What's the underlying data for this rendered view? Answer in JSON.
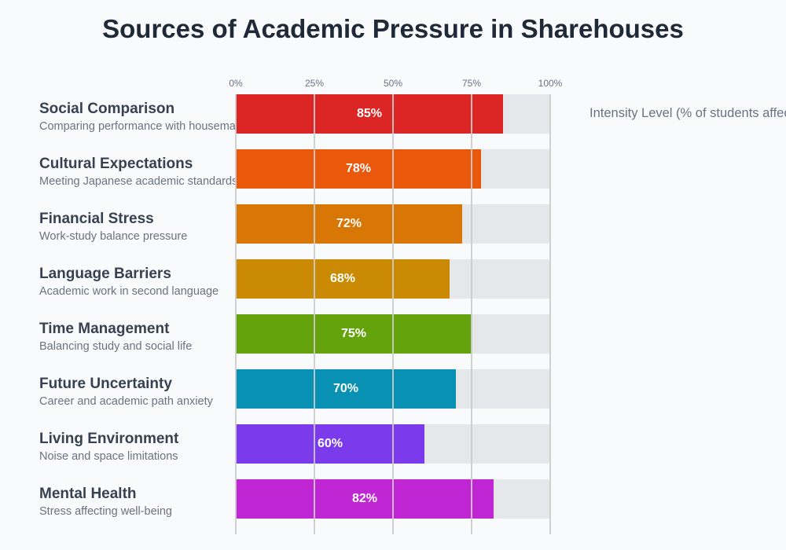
{
  "chart_data": {
    "type": "bar",
    "orientation": "horizontal",
    "title": "Sources of Academic Pressure in Sharehouses",
    "subtitle": "Intensity Level (% of students affected)",
    "xlim": [
      0,
      100
    ],
    "x_ticks": [
      "0%",
      "25%",
      "50%",
      "75%",
      "100%"
    ],
    "grid": true,
    "categories": [
      "Social Comparison",
      "Cultural Expectations",
      "Financial Stress",
      "Language Barriers",
      "Time Management",
      "Future Uncertainty",
      "Living Environment",
      "Mental Health"
    ],
    "descriptions": [
      "Comparing performance with housemates",
      "Meeting Japanese academic standards",
      "Work-study balance pressure",
      "Academic work in second language",
      "Balancing study and social life",
      "Career and academic path anxiety",
      "Noise and space limitations",
      "Stress affecting well-being"
    ],
    "values": [
      85,
      78,
      72,
      68,
      75,
      70,
      60,
      82
    ],
    "colors": [
      "#dc2626",
      "#ea580c",
      "#d97706",
      "#ca8a04",
      "#65a30d",
      "#0891b2",
      "#7c3aed",
      "#c026d3"
    ],
    "track_color": "#e5e7eb"
  }
}
